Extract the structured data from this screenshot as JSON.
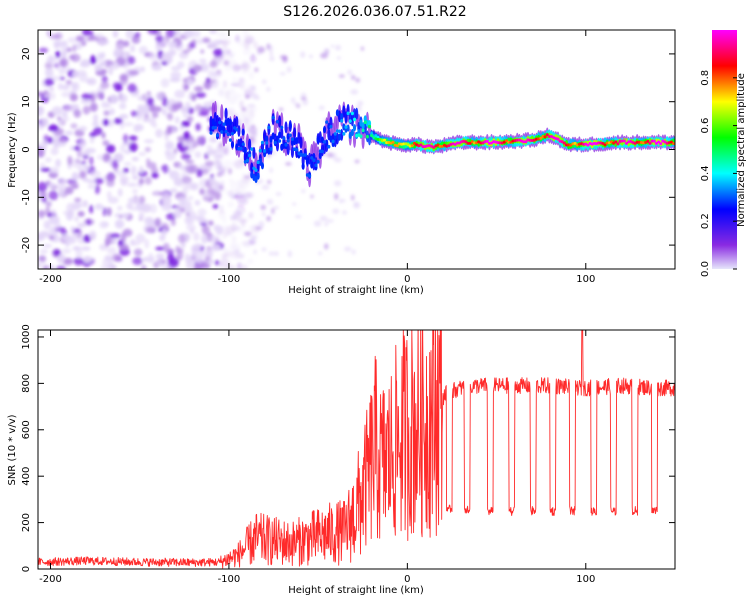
{
  "title": "S126.2026.036.07.51.R22",
  "colors": {
    "snr_line": "#ff2a2a",
    "colormap": [
      "#e6e6fa",
      "#8a2be2",
      "#0000ff",
      "#00ffff",
      "#00ff00",
      "#ffff00",
      "#ff0000",
      "#ff00ff"
    ]
  },
  "chart_data": [
    {
      "type": "heatmap",
      "name": "spectrogram",
      "xlabel": "Height of straight line (km)",
      "ylabel": "Frequency (Hz)",
      "xlim": [
        -207,
        150
      ],
      "ylim": [
        -25,
        25
      ],
      "xticks": [
        -200,
        -100,
        0,
        100
      ],
      "yticks": [
        -20,
        -10,
        0,
        10,
        20
      ],
      "colorbar": {
        "label": "Normalized spectral amplitude",
        "range": [
          0,
          1
        ],
        "ticks": [
          "0.0",
          "0.2",
          "0.4",
          "0.6",
          "0.8"
        ]
      },
      "noise_region": {
        "x_from": -207,
        "x_to": -105,
        "freq_range": [
          -25,
          25
        ]
      },
      "carrier_track": [
        {
          "x": -110,
          "freq": 6,
          "amp": 0.3
        },
        {
          "x": -100,
          "freq": 5,
          "amp": 0.3
        },
        {
          "x": -92,
          "freq": 1,
          "amp": 0.3
        },
        {
          "x": -85,
          "freq": -4,
          "amp": 0.35
        },
        {
          "x": -75,
          "freq": 4,
          "amp": 0.3
        },
        {
          "x": -62,
          "freq": 2,
          "amp": 0.3
        },
        {
          "x": -55,
          "freq": -4,
          "amp": 0.3
        },
        {
          "x": -45,
          "freq": 3,
          "amp": 0.3
        },
        {
          "x": -35,
          "freq": 6,
          "amp": 0.35
        },
        {
          "x": -25,
          "freq": 4,
          "amp": 0.45
        },
        {
          "x": -15,
          "freq": 2,
          "amp": 0.6
        },
        {
          "x": -5,
          "freq": 1,
          "amp": 0.7
        },
        {
          "x": 5,
          "freq": 1,
          "amp": 0.8
        },
        {
          "x": 15,
          "freq": 0.5,
          "amp": 0.9
        },
        {
          "x": 30,
          "freq": 1.5,
          "amp": 0.85
        },
        {
          "x": 50,
          "freq": 1.5,
          "amp": 0.9
        },
        {
          "x": 70,
          "freq": 2,
          "amp": 0.85
        },
        {
          "x": 80,
          "freq": 3,
          "amp": 0.9
        },
        {
          "x": 90,
          "freq": 1,
          "amp": 0.8
        },
        {
          "x": 100,
          "freq": 1,
          "amp": 0.9
        },
        {
          "x": 120,
          "freq": 1.5,
          "amp": 0.85
        },
        {
          "x": 140,
          "freq": 1.5,
          "amp": 0.9
        },
        {
          "x": 150,
          "freq": 1.5,
          "amp": 0.85
        }
      ]
    },
    {
      "type": "line",
      "name": "snr",
      "xlabel": "Height of straight line (km)",
      "ylabel": "SNR (10 * v/v)",
      "xlim": [
        -207,
        150
      ],
      "ylim": [
        0,
        1030
      ],
      "xticks": [
        -200,
        -100,
        0,
        100
      ],
      "yticks": [
        0,
        200,
        400,
        600,
        800,
        1000
      ],
      "series": [
        {
          "name": "SNR",
          "x": [
            -207,
            -180,
            -150,
            -120,
            -105,
            -95,
            -85,
            -75,
            -65,
            -55,
            -45,
            -35,
            -28,
            -22,
            -18,
            -15,
            -10,
            -5,
            0,
            5,
            10,
            15,
            18,
            22,
            30,
            40,
            60,
            80,
            100,
            120,
            140,
            150
          ],
          "y": [
            30,
            35,
            30,
            28,
            30,
            60,
            130,
            120,
            110,
            130,
            150,
            160,
            260,
            400,
            520,
            450,
            480,
            560,
            600,
            620,
            640,
            680,
            720,
            760,
            780,
            790,
            790,
            790,
            780,
            790,
            780,
            780
          ]
        }
      ],
      "dropouts": [
        {
          "x_from": 22,
          "x_to": 25,
          "level": 260
        },
        {
          "x_from": 32,
          "x_to": 35,
          "level": 260
        },
        {
          "x_from": 45,
          "x_to": 48,
          "level": 250
        },
        {
          "x_from": 57,
          "x_to": 60,
          "level": 250
        },
        {
          "x_from": 69,
          "x_to": 72,
          "level": 250
        },
        {
          "x_from": 80,
          "x_to": 83,
          "level": 250
        },
        {
          "x_from": 91,
          "x_to": 94,
          "level": 250
        },
        {
          "x_from": 103,
          "x_to": 106,
          "level": 250
        },
        {
          "x_from": 114,
          "x_to": 117,
          "level": 250
        },
        {
          "x_from": 126,
          "x_to": 129,
          "level": 250
        },
        {
          "x_from": 137,
          "x_to": 140,
          "level": 250
        }
      ],
      "spike": {
        "x": 98,
        "y": 1030
      }
    }
  ]
}
